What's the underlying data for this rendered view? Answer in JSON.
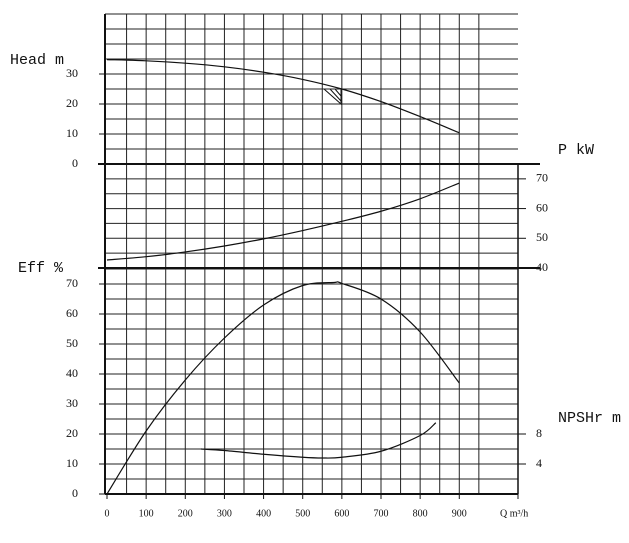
{
  "chart_data": [
    {
      "type": "line",
      "ylabel": "Head m",
      "x": [
        0,
        100,
        200,
        300,
        400,
        500,
        600,
        700,
        800,
        900
      ],
      "values": [
        34.8,
        34.4,
        33.6,
        32.4,
        30.6,
        28.2,
        25,
        20.8,
        15.8,
        10.4
      ],
      "ylim": [
        0,
        50
      ],
      "yticks": [
        0,
        10,
        20,
        30
      ],
      "xlim": [
        0,
        1050
      ],
      "xticks": [
        0,
        100,
        200,
        300,
        400,
        500,
        600,
        700,
        800,
        900
      ],
      "xlabel": "Q m³/h",
      "color": "#111"
    },
    {
      "type": "line",
      "ylabel": "P kW",
      "x": [
        0,
        100,
        200,
        300,
        400,
        500,
        600,
        700,
        800,
        900
      ],
      "values": [
        42.7,
        43.8,
        45.4,
        47.4,
        49.8,
        52.6,
        55.7,
        59.1,
        63.3,
        68.6
      ],
      "ylim": [
        40,
        75
      ],
      "yticks": [
        40,
        50,
        60,
        70
      ],
      "color": "#111"
    },
    {
      "type": "line",
      "ylabel": "Eff %",
      "x": [
        0,
        100,
        200,
        300,
        400,
        500,
        580,
        600,
        700,
        800,
        900
      ],
      "values": [
        0,
        21,
        38,
        52,
        63,
        69.5,
        70.5,
        70.2,
        65,
        54,
        37
      ],
      "ylim": [
        0,
        75
      ],
      "yticks": [
        0,
        10,
        20,
        30,
        40,
        50,
        60,
        70
      ],
      "color": "#111"
    },
    {
      "type": "line",
      "ylabel": "NPSHr m",
      "x": [
        240,
        300,
        400,
        500,
        550,
        600,
        700,
        800,
        840
      ],
      "values": [
        6,
        5.8,
        5.3,
        4.9,
        4.8,
        4.9,
        5.7,
        7.8,
        9.5
      ],
      "ylim": [
        0,
        30
      ],
      "yticks": [
        4,
        8
      ],
      "color": "#111"
    }
  ]
}
